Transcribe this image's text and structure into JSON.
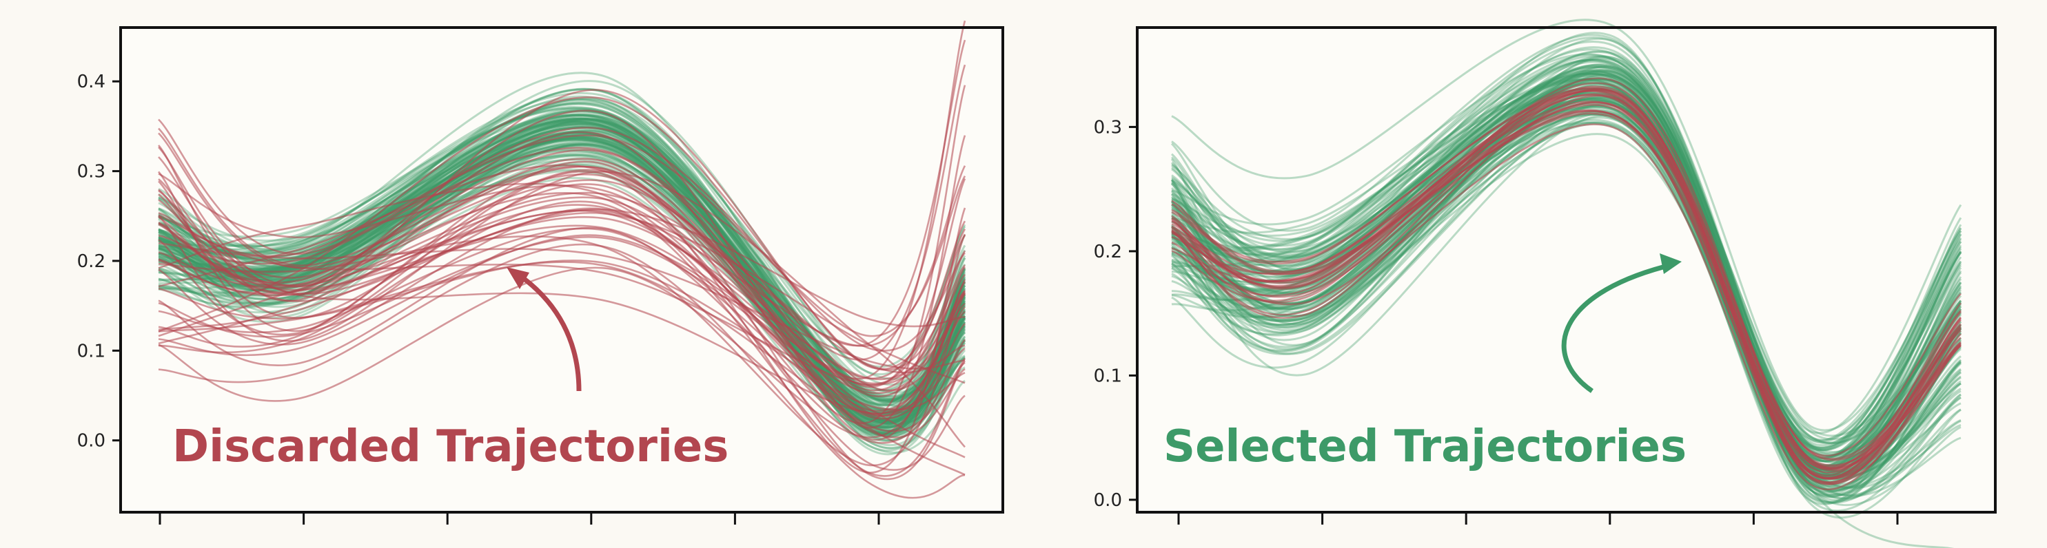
{
  "colors": {
    "background": "#fbf9f3",
    "panel": "#fdfcf8",
    "discarded": "#b2464f",
    "selected": "#3d9a68",
    "axis": "#111111"
  },
  "chart_data": [
    {
      "type": "line",
      "title": "",
      "xlabel": "",
      "ylabel": "",
      "xlim": [
        0,
        1
      ],
      "ylim": [
        -0.08,
        0.46
      ],
      "yticks": [
        "0.0",
        "0.1",
        "0.2",
        "0.3",
        "0.4"
      ],
      "x_tick_count": 6,
      "grid": false,
      "legend": "none",
      "annotation": "Discarded Trajectories",
      "annotation_color": "#b2464f",
      "series": [
        {
          "color": "#3d9a68",
          "count": 120,
          "x": [
            0.0,
            0.17,
            0.55,
            0.88,
            1.0
          ],
          "mean_y": [
            0.22,
            0.19,
            0.345,
            0.03,
            0.15
          ],
          "spread": [
            0.03,
            0.025,
            0.025,
            0.02,
            0.035
          ]
        },
        {
          "color": "#b2464f",
          "count": 45,
          "x": [
            0.0,
            0.17,
            0.55,
            0.88,
            1.0
          ],
          "mean_y": [
            0.22,
            0.15,
            0.28,
            0.05,
            0.17
          ],
          "spread": [
            0.08,
            0.05,
            0.06,
            0.05,
            0.12
          ]
        }
      ]
    },
    {
      "type": "line",
      "title": "",
      "xlabel": "",
      "ylabel": "",
      "xlim": [
        0,
        1
      ],
      "ylim": [
        -0.01,
        0.38
      ],
      "yticks": [
        "0.0",
        "0.1",
        "0.2",
        "0.3"
      ],
      "x_tick_count": 6,
      "grid": false,
      "legend": "none",
      "annotation": "Selected Trajectories",
      "annotation_color": "#3d9a68",
      "series": [
        {
          "color": "#3d9a68",
          "count": 120,
          "x": [
            0.0,
            0.17,
            0.56,
            0.81,
            1.0
          ],
          "mean_y": [
            0.22,
            0.17,
            0.33,
            0.025,
            0.14
          ],
          "spread": [
            0.03,
            0.03,
            0.02,
            0.015,
            0.05
          ]
        },
        {
          "color": "#b2464f",
          "count": 22,
          "x": [
            0.0,
            0.17,
            0.56,
            0.81,
            1.0
          ],
          "mean_y": [
            0.22,
            0.175,
            0.32,
            0.025,
            0.14
          ],
          "spread": [
            0.012,
            0.012,
            0.012,
            0.008,
            0.015
          ]
        }
      ]
    }
  ]
}
